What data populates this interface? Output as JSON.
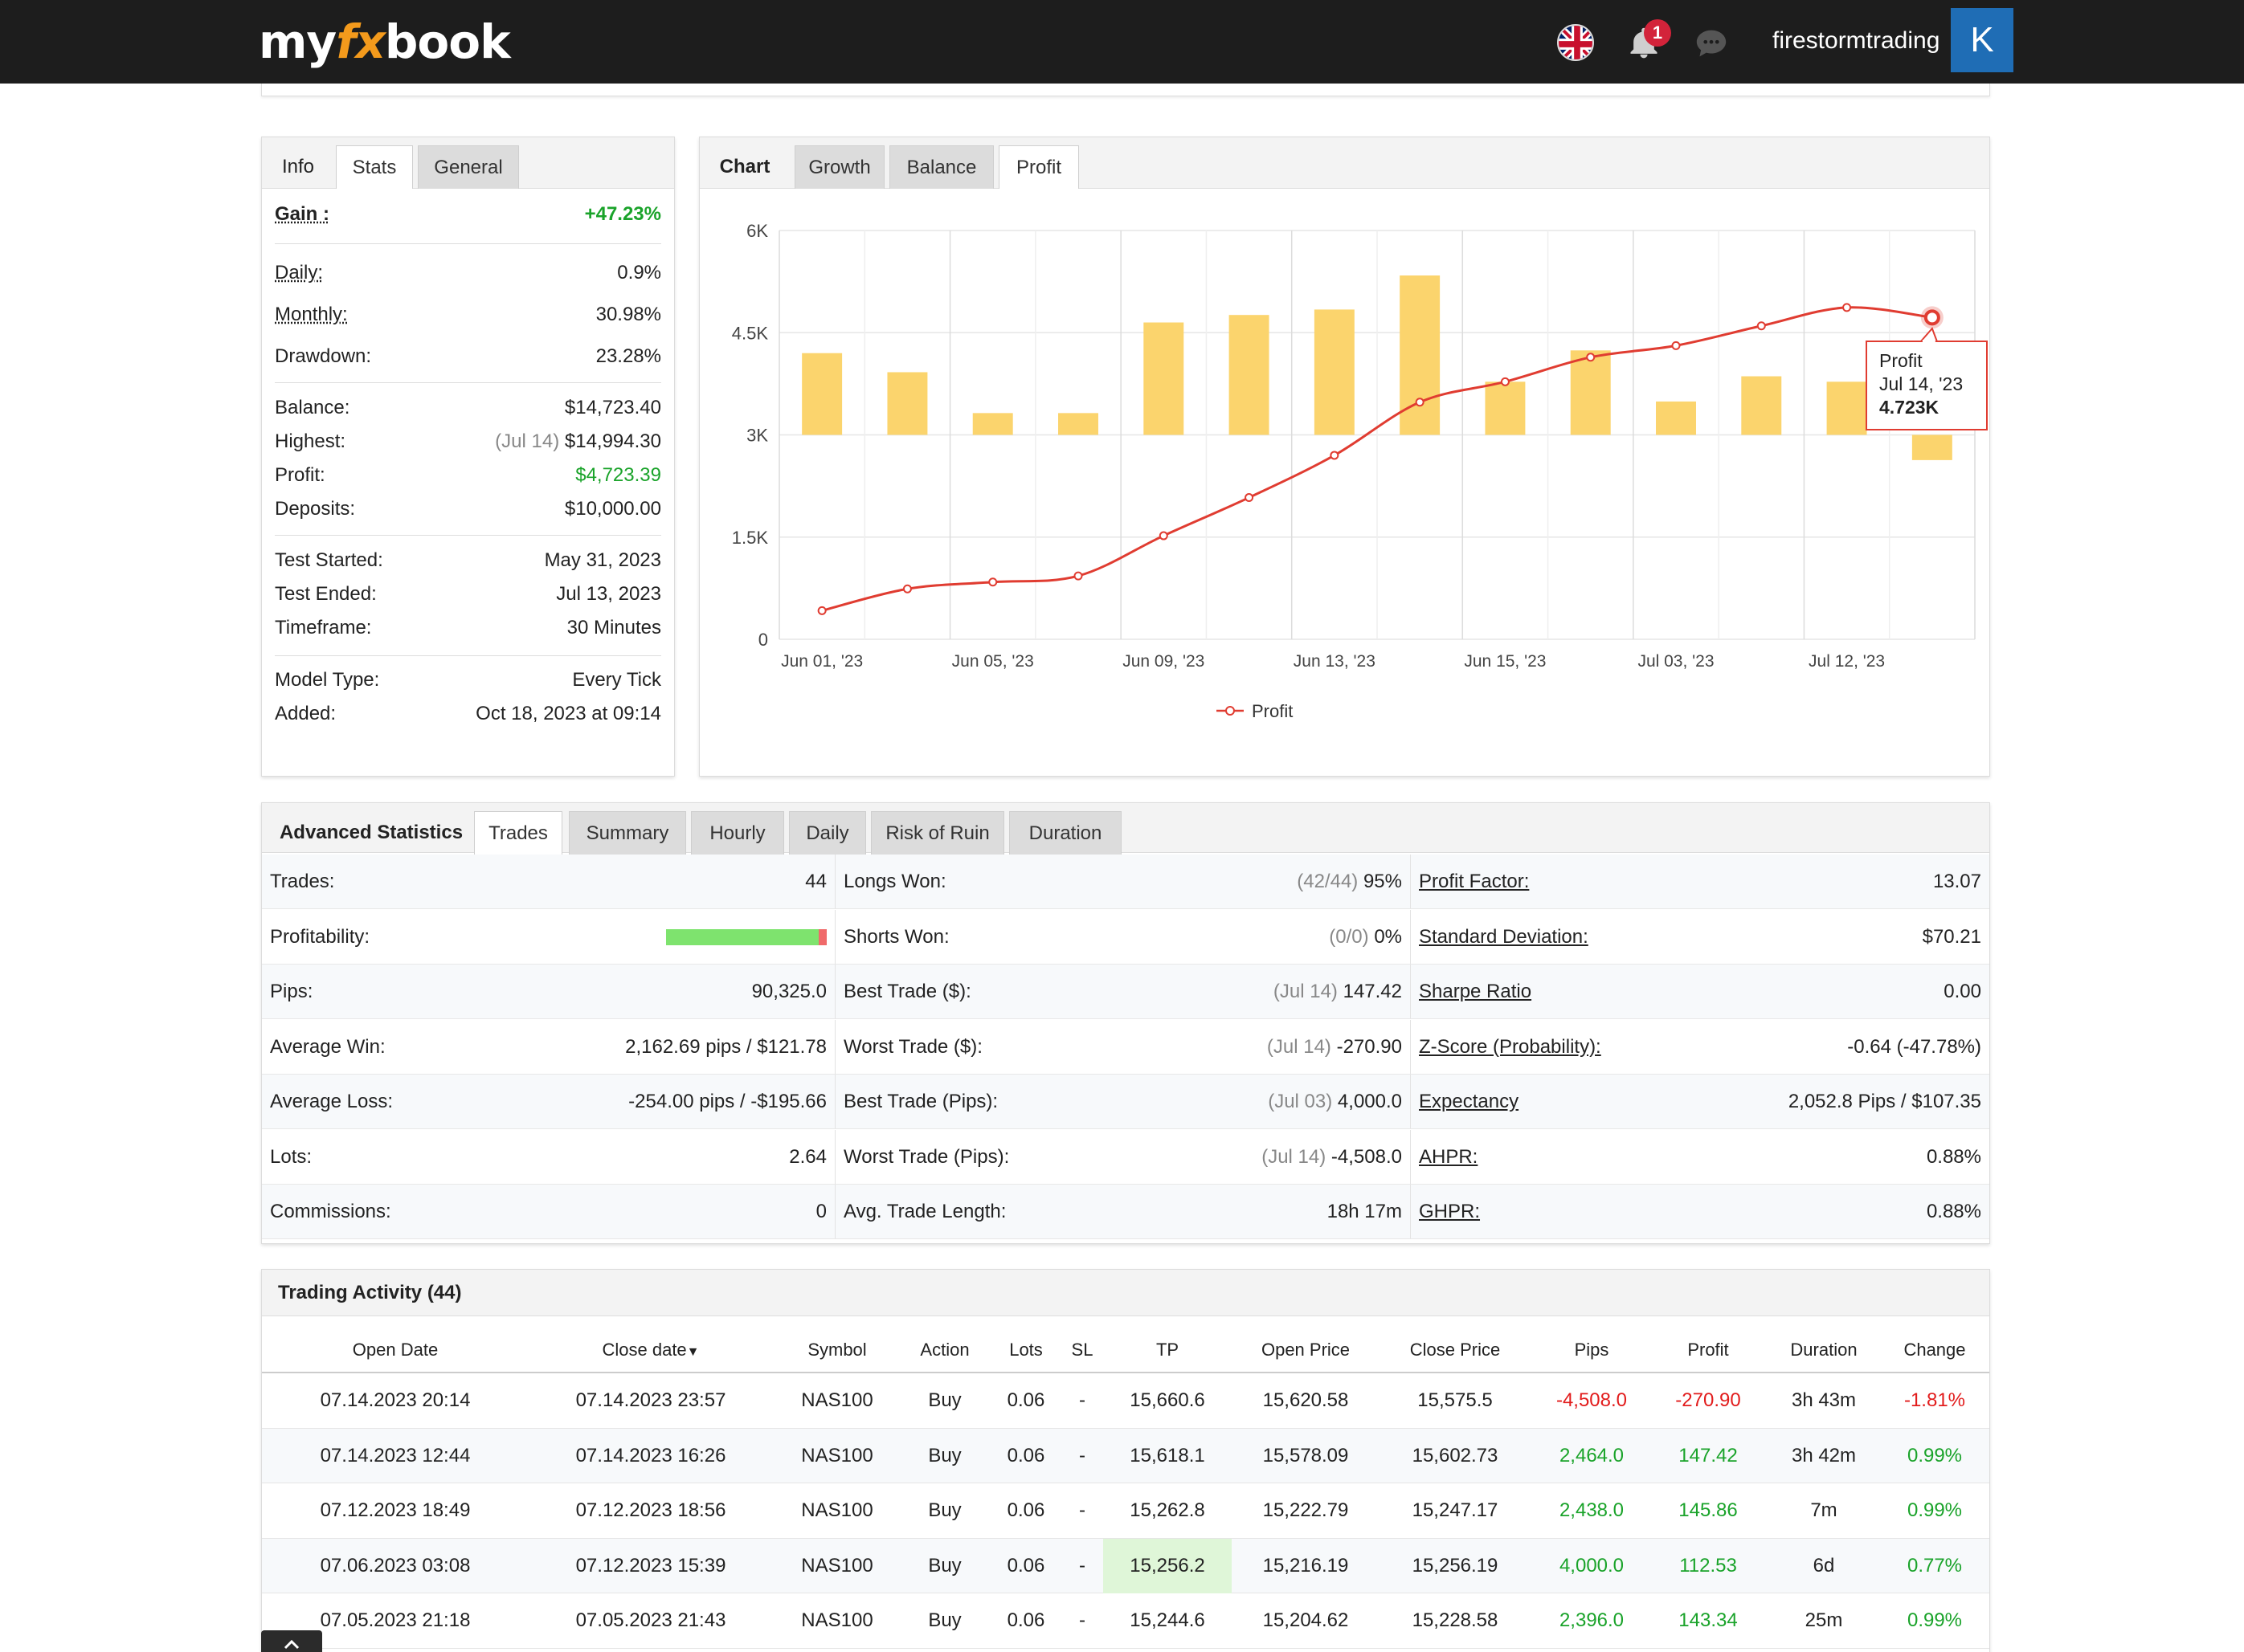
{
  "header": {
    "logo_my": "my",
    "logo_fx": "fx",
    "logo_book": "book",
    "notification_count": "1",
    "username": "firestormtrading",
    "avatar_letter": "K",
    "flag_icon": "uk-flag-icon",
    "bell_icon": "bell-icon",
    "chat_icon": "chat-icon"
  },
  "stats_panel": {
    "tabs": [
      "Info",
      "Stats",
      "General"
    ],
    "active_tab": "Stats",
    "gain_label": "Gain :",
    "gain_value": "+47.23%",
    "daily_label": "Daily:",
    "daily_value": "0.9%",
    "monthly_label": "Monthly:",
    "monthly_value": "30.98%",
    "drawdown_label": "Drawdown:",
    "drawdown_value": "23.28%",
    "balance_label": "Balance:",
    "balance_value": "$14,723.40",
    "highest_label": "Highest:",
    "highest_date": "(Jul 14)",
    "highest_value": "$14,994.30",
    "profit_label": "Profit:",
    "profit_value": "$4,723.39",
    "deposits_label": "Deposits:",
    "deposits_value": "$10,000.00",
    "test_started_label": "Test Started:",
    "test_started_value": "May 31, 2023",
    "test_ended_label": "Test Ended:",
    "test_ended_value": "Jul 13, 2023",
    "timeframe_label": "Timeframe:",
    "timeframe_value": "30 Minutes",
    "model_type_label": "Model Type:",
    "model_type_value": "Every Tick",
    "added_label": "Added:",
    "added_value": "Oct 18, 2023 at 09:14"
  },
  "chart_panel": {
    "tabs": [
      "Chart",
      "Growth",
      "Balance",
      "Profit"
    ],
    "active_tab": "Profit",
    "tooltip_series": "Profit",
    "tooltip_date": "Jul 14, '23",
    "tooltip_value": "4.723K",
    "legend_label": "Profit",
    "colors": {
      "line": "#e03c31",
      "bar": "#fbd46d",
      "grid": "#e6e6e6"
    }
  },
  "chart_data": {
    "type": "bar",
    "title": "",
    "xlabel": "",
    "ylabel": "",
    "ylim": [
      0,
      6000
    ],
    "yticks": [
      "0",
      "1.5K",
      "3K",
      "4.5K",
      "6K"
    ],
    "xtick_labels": [
      "Jun 01, '23",
      "Jun 05, '23",
      "Jun 09, '23",
      "Jun 13, '23",
      "Jun 15, '23",
      "Jul 03, '23",
      "Jul 12, '23"
    ],
    "bar_baseline": 3000,
    "bars": [
      1200,
      920,
      320,
      320,
      1650,
      1760,
      1840,
      2340,
      780,
      1240,
      490,
      860,
      780,
      -370
    ],
    "series": [
      {
        "name": "Profit",
        "type": "line",
        "values": [
          420,
          740,
          840,
          930,
          1520,
          2080,
          2700,
          3480,
          3780,
          4140,
          4310,
          4600,
          4870,
          4723
        ]
      }
    ],
    "grid": true,
    "legend_position": "bottom-center"
  },
  "advanced": {
    "tabs": [
      "Advanced Statistics",
      "Trades",
      "Summary",
      "Hourly",
      "Daily",
      "Risk of Ruin",
      "Duration"
    ],
    "active_tab": "Trades",
    "profitability_fraction": 0.95,
    "col1": [
      {
        "label": "Trades:",
        "value": "44"
      },
      {
        "label": "Profitability:",
        "value": ""
      },
      {
        "label": "Pips:",
        "value": "90,325.0"
      },
      {
        "label": "Average Win:",
        "value": "2,162.69 pips / $121.78"
      },
      {
        "label": "Average Loss:",
        "value": "-254.00 pips / -$195.66"
      },
      {
        "label": "Lots:",
        "value": "2.64"
      },
      {
        "label": "Commissions:",
        "value": "0"
      }
    ],
    "col2": [
      {
        "label": "Longs Won:",
        "note": "(42/44)",
        "value": "95%"
      },
      {
        "label": "Shorts Won:",
        "note": "(0/0)",
        "value": "0%"
      },
      {
        "label": "Best Trade ($):",
        "note": "(Jul 14)",
        "value": "147.42"
      },
      {
        "label": "Worst Trade ($):",
        "note": "(Jul 14)",
        "value": "-270.90"
      },
      {
        "label": "Best Trade (Pips):",
        "note": "(Jul 03)",
        "value": "4,000.0"
      },
      {
        "label": "Worst Trade (Pips):",
        "note": "(Jul 14)",
        "value": "-4,508.0"
      },
      {
        "label": "Avg. Trade Length:",
        "note": "",
        "value": "18h 17m"
      }
    ],
    "col3": [
      {
        "label": "Profit Factor:",
        "value": "13.07"
      },
      {
        "label": "Standard Deviation:",
        "value": "$70.21"
      },
      {
        "label": "Sharpe Ratio",
        "value": "0.00"
      },
      {
        "label": "Z-Score (Probability):",
        "value": "-0.64 (-47.78%)"
      },
      {
        "label": "Expectancy",
        "value": "2,052.8 Pips / $107.35"
      },
      {
        "label": "AHPR:",
        "value": "0.88%"
      },
      {
        "label": "GHPR:",
        "value": "0.88%"
      }
    ]
  },
  "activity": {
    "title": "Trading Activity (44)",
    "columns": [
      "Open Date",
      "Close date",
      "Symbol",
      "Action",
      "Lots",
      "SL",
      "TP",
      "Open Price",
      "Close Price",
      "Pips",
      "Profit",
      "Duration",
      "Change"
    ],
    "sort_icon": "sort-down-icon",
    "rows": [
      [
        "07.14.2023 20:14",
        "07.14.2023 23:57",
        "NAS100",
        "Buy",
        "0.06",
        "-",
        "15,660.6",
        "15,620.58",
        "15,575.5",
        "-4,508.0",
        "-270.90",
        "3h 43m",
        "-1.81%"
      ],
      [
        "07.14.2023 12:44",
        "07.14.2023 16:26",
        "NAS100",
        "Buy",
        "0.06",
        "-",
        "15,618.1",
        "15,578.09",
        "15,602.73",
        "2,464.0",
        "147.42",
        "3h 42m",
        "0.99%"
      ],
      [
        "07.12.2023 18:49",
        "07.12.2023 18:56",
        "NAS100",
        "Buy",
        "0.06",
        "-",
        "15,262.8",
        "15,222.79",
        "15,247.17",
        "2,438.0",
        "145.86",
        "7m",
        "0.99%"
      ],
      [
        "07.06.2023 03:08",
        "07.12.2023 15:39",
        "NAS100",
        "Buy",
        "0.06",
        "-",
        "15,256.2",
        "15,216.19",
        "15,256.19",
        "4,000.0",
        "112.53",
        "6d",
        "0.77%"
      ],
      [
        "07.05.2023 21:18",
        "07.05.2023 21:43",
        "NAS100",
        "Buy",
        "0.06",
        "-",
        "15,244.6",
        "15,204.62",
        "15,228.58",
        "2,396.0",
        "143.34",
        "25m",
        "0.99%"
      ]
    ],
    "scroll_up_icon": "chevron-up-icon"
  }
}
